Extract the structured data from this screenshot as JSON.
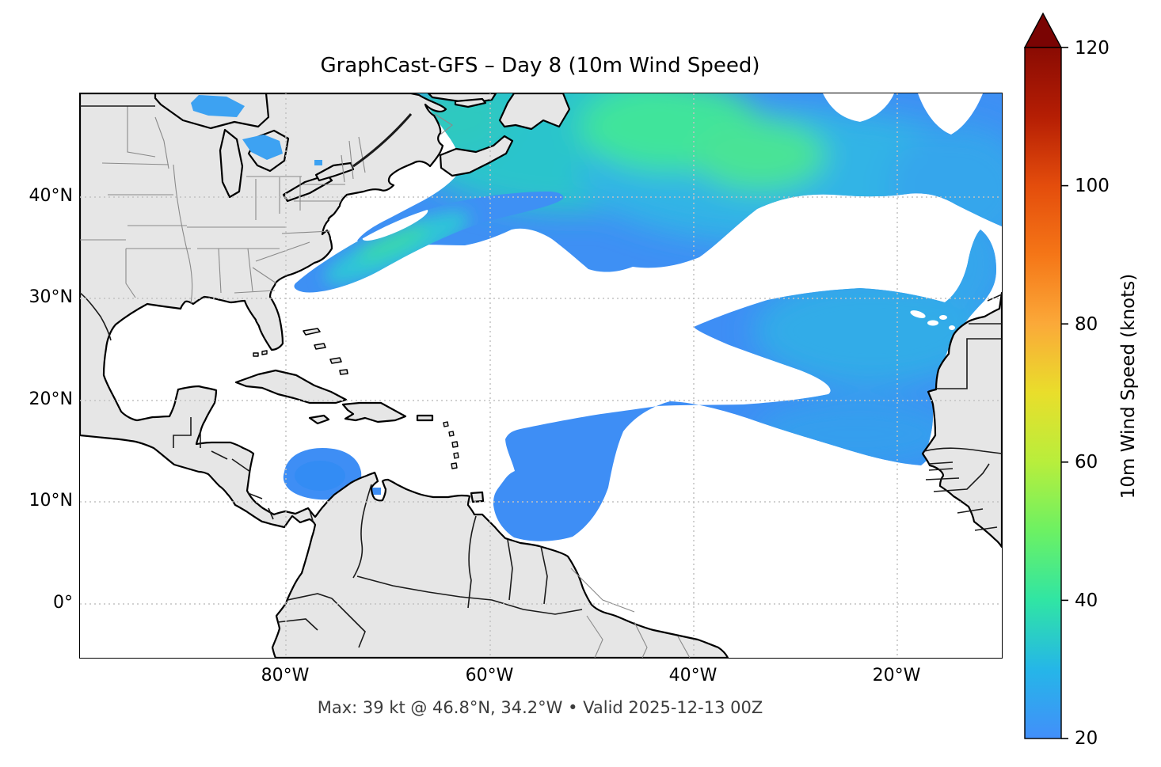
{
  "title": "GraphCast-GFS – Day 8 (10m Wind Speed)",
  "caption": "Max: 39 kt @ 46.8°N, 34.2°W • Valid 2025-12-13 00Z",
  "axes": {
    "lat_labels": [
      "40°N",
      "30°N",
      "20°N",
      "10°N",
      "0°"
    ],
    "lon_labels": [
      "80°W",
      "60°W",
      "40°W",
      "20°W"
    ]
  },
  "colorbar": {
    "label": "10m Wind Speed (knots)",
    "ticks": [
      "120",
      "100",
      "80",
      "60",
      "40",
      "20"
    ],
    "min": 20,
    "max": 120,
    "extend": "max",
    "arrow_color": "#7A0403",
    "stops": [
      {
        "value": 20,
        "color": "#428FFA"
      },
      {
        "value": 30,
        "color": "#25B6E8"
      },
      {
        "value": 40,
        "color": "#30E5A4"
      },
      {
        "value": 50,
        "color": "#6CF163"
      },
      {
        "value": 60,
        "color": "#B8EE3C"
      },
      {
        "value": 70,
        "color": "#E9DE2B"
      },
      {
        "value": 80,
        "color": "#FBA939"
      },
      {
        "value": 90,
        "color": "#F57617"
      },
      {
        "value": 100,
        "color": "#E44D0C"
      },
      {
        "value": 110,
        "color": "#B51E04"
      },
      {
        "value": 120,
        "color": "#8A0B03"
      }
    ]
  },
  "chart_data": {
    "type": "heatmap",
    "subtype": "geographic-wind-speed-map",
    "model": "GraphCast-GFS",
    "lead_time": "Day 8",
    "variable": "10m Wind Speed",
    "units": "knots",
    "valid_time": "2025-12-13 00Z",
    "projection": "PlateCarree",
    "extent": {
      "lon": [
        -100.2,
        -9.8
      ],
      "lat": [
        -5.3,
        50.3
      ]
    },
    "gridlines": {
      "lats": [
        40,
        30,
        20,
        10,
        0
      ],
      "lons": [
        -80,
        -60,
        -40,
        -20
      ],
      "style": "dotted gray"
    },
    "color_scale": {
      "range": [
        20,
        120
      ],
      "shading_threshold_kt": 20,
      "colormap": "turbo-like (blue→teal→green→yellow→orange→dark red)"
    },
    "max_annotation": {
      "value_kt": 39,
      "lat": 46.8,
      "lon": -34.2
    },
    "wind_features": [
      {
        "name": "north-atlantic-storm",
        "lon_range": [
          -67,
          -10
        ],
        "lat_range": [
          33,
          50.3
        ],
        "peak_kt": 39,
        "peak_location": {
          "lat": 46.8,
          "lon": -34.2
        },
        "note": "large cyclone field south of Newfoundland stretching to Europe edge, green core ~39 kt"
      },
      {
        "name": "gulf-stream-band",
        "lon_range": [
          -79,
          -52
        ],
        "lat_range": [
          32,
          40
        ],
        "peak_kt": 33,
        "note": "elongated SW–NE band off US east coast, cyan core"
      },
      {
        "name": "subtropical-trade-band",
        "lon_range": [
          -57,
          -10
        ],
        "lat_range": [
          8,
          31
        ],
        "peak_kt": 30,
        "note": "broad trade-wind field reaching Northwest Africa, Canary Islands cut out"
      },
      {
        "name": "caribbean-low-level-jet",
        "lon_range": [
          -76,
          -68
        ],
        "lat_range": [
          11,
          15
        ],
        "peak_kt": 27,
        "note": "oval patch north of Colombia/Venezuela"
      },
      {
        "name": "great-lakes-winds",
        "lon_range": [
          -88,
          -80
        ],
        "lat_range": [
          44,
          48.5
        ],
        "peak_kt": 24,
        "note": "small patches over Lakes Superior and Huron"
      }
    ],
    "style_colors": {
      "land": "#e6e6e6",
      "coastline": "#000000",
      "state_borders": "#8a8a8a",
      "ocean": "#ffffff",
      "patch_edge_blue": "#3E90F4",
      "patch_cyan": "#2CBFD9",
      "patch_green_core": "#3FE49B"
    }
  }
}
